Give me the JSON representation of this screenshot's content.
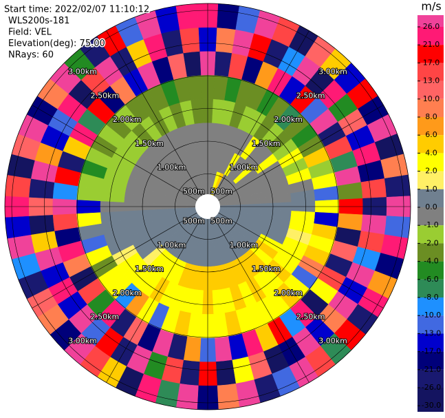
{
  "chart_data": {
    "type": "ppi",
    "header": [
      "Start time: 2022/02/07 11:10:12",
      "WLS200s-181",
      "Field: VEL",
      "Elevation(deg): 75.00",
      "NRays: 60"
    ],
    "range_labels": [
      "500m",
      "1.00km",
      "1.50km",
      "2.00km",
      "2.50km",
      "3.00km"
    ],
    "colorbar": {
      "label": "m/s",
      "ticks": [
        {
          "value": 26,
          "label": "26.0"
        },
        {
          "value": 21,
          "label": "21.0"
        },
        {
          "value": 17,
          "label": "17.0"
        },
        {
          "value": 13,
          "label": "13.0"
        },
        {
          "value": 10,
          "label": "10.0"
        },
        {
          "value": 8,
          "label": "8.0"
        },
        {
          "value": 6,
          "label": "6.0"
        },
        {
          "value": 4,
          "label": "4.0"
        },
        {
          "value": 2,
          "label": "2.0"
        },
        {
          "value": 1,
          "label": "1.0"
        },
        {
          "value": 0,
          "label": "0.0"
        },
        {
          "value": -1,
          "label": "-1.0"
        },
        {
          "value": -2,
          "label": "-2.0"
        },
        {
          "value": -4,
          "label": "-4.0"
        },
        {
          "value": -6,
          "label": "-6.0"
        },
        {
          "value": -8,
          "label": "-8.0"
        },
        {
          "value": -10,
          "label": "-10.0"
        },
        {
          "value": -13,
          "label": "-13.0"
        },
        {
          "value": -17,
          "label": "-17.0"
        },
        {
          "value": -21,
          "label": "-21.0"
        },
        {
          "value": -26,
          "label": "-26.0"
        },
        {
          "value": -30,
          "label": "-30.0"
        }
      ],
      "colors": [
        "#f0429a",
        "#ff1a75",
        "#ff0000",
        "#ff4545",
        "#ff6464",
        "#ff7f50",
        "#ff9a1a",
        "#ffcc00",
        "#ffff00",
        "#fff066",
        "#708090",
        "#808080",
        "#9acd32",
        "#6b8e23",
        "#228b22",
        "#2e8b57",
        "#1e90ff",
        "#4169e1",
        "#0000cd",
        "#00007a",
        "#191970",
        "#141460"
      ]
    },
    "values": [
      [
        -0.5,
        -0.5,
        -0.5,
        -3,
        -3,
        27,
        -15,
        22
      ],
      [
        -0.5,
        -0.5,
        -0.5,
        -1.5,
        -3,
        -25,
        9,
        -18
      ],
      [
        -0.5,
        -0.5,
        -0.5,
        -1.5,
        -5,
        14,
        27,
        -12
      ],
      [
        3,
        -0.5,
        -0.5,
        -3,
        -3,
        -19,
        18,
        28
      ],
      [
        5,
        -0.5,
        -0.5,
        -1.5,
        -3,
        7,
        -23,
        15
      ],
      [
        -0.5,
        3,
        -0.5,
        -1.5,
        -5,
        22,
        -9,
        -27
      ],
      [
        -0.5,
        -0.5,
        3,
        -3,
        -3,
        -14,
        27,
        11
      ],
      [
        -0.5,
        -0.5,
        -0.5,
        -1.5,
        -7,
        18,
        -27,
        5
      ],
      [
        -0.5,
        3,
        -0.5,
        -3,
        -3,
        -11,
        24,
        -16
      ],
      [
        -0.5,
        -0.5,
        3,
        -1.5,
        -5,
        29,
        -6,
        19
      ],
      [
        -0.5,
        -0.5,
        -0.5,
        3,
        -3,
        -24,
        12,
        -20
      ],
      [
        -0.5,
        -0.5,
        -0.5,
        -1.5,
        5,
        16,
        -15,
        27
      ],
      [
        -0.5,
        -0.5,
        -0.5,
        3,
        -1.5,
        -8,
        23,
        -28
      ],
      [
        -0.5,
        -0.5,
        -0.5,
        -0.5,
        3,
        26,
        -18,
        9
      ],
      [
        -0.5,
        -0.5,
        -0.5,
        0.5,
        -12,
        -3,
        14,
        -23
      ],
      [
        0.5,
        0.5,
        0.5,
        0.5,
        3,
        19,
        -25,
        28
      ],
      [
        0.5,
        0.5,
        0.5,
        3,
        -16,
        7,
        27,
        -11
      ],
      [
        0.5,
        0.5,
        0.5,
        3,
        5,
        -27,
        15,
        21
      ],
      [
        0.5,
        0.5,
        0.5,
        1.5,
        3,
        12,
        -9,
        -19
      ],
      [
        0.5,
        0.5,
        0.5,
        3,
        5,
        -22,
        28,
        7
      ],
      [
        0.5,
        0.5,
        3,
        3,
        9,
        15,
        -16,
        24
      ],
      [
        0.5,
        0.5,
        5,
        3,
        -12,
        3,
        27,
        -25
      ],
      [
        0.5,
        0.5,
        3,
        5,
        3,
        -27,
        9,
        18
      ],
      [
        0.5,
        0.5,
        5,
        3,
        5,
        22,
        -14,
        -7
      ],
      [
        0.5,
        0.5,
        5,
        3,
        3,
        -9,
        28,
        14
      ],
      [
        0.5,
        0.5,
        5,
        5,
        3,
        17,
        -21,
        27
      ],
      [
        0.5,
        0.5,
        5,
        3,
        3,
        5,
        -27,
        -13
      ],
      [
        0.5,
        0.5,
        5,
        5,
        3,
        25,
        11,
        -23
      ],
      [
        0.5,
        0.5,
        5,
        3,
        5,
        -15,
        3,
        27
      ],
      [
        0.5,
        0.5,
        5,
        3,
        3,
        28,
        -27,
        9
      ],
      [
        0.5,
        0.5,
        5,
        5,
        3,
        -11,
        18,
        -19
      ],
      [
        0.5,
        0.5,
        5,
        3,
        3,
        7,
        -25,
        26
      ],
      [
        0.5,
        0.5,
        5,
        3,
        5,
        -22,
        14,
        -8
      ],
      [
        0.5,
        0.5,
        5,
        3,
        3,
        27,
        -6,
        21
      ],
      [
        0.5,
        0.5,
        3,
        3,
        -12,
        -18,
        28,
        -27
      ],
      [
        0.5,
        0.5,
        3,
        5,
        3,
        12,
        -24,
        5
      ],
      [
        0.5,
        0.5,
        3,
        3,
        7,
        -26,
        19,
        14
      ],
      [
        0.5,
        0.5,
        3,
        3,
        -9,
        22,
        -13,
        28
      ],
      [
        0.5,
        0.5,
        1.5,
        3,
        3,
        -5,
        27,
        -21
      ],
      [
        0.5,
        0.5,
        0.5,
        3,
        3,
        15,
        -17,
        9
      ],
      [
        0.5,
        0.5,
        0.5,
        1.5,
        -3,
        -27,
        24,
        11
      ],
      [
        0.5,
        0.5,
        0.5,
        0.5,
        3,
        8,
        -15,
        -25
      ],
      [
        0.5,
        0.5,
        0.5,
        0.5,
        -12,
        23,
        28,
        -9
      ],
      [
        0.5,
        0.5,
        0.5,
        0.5,
        0.5,
        -19,
        5,
        27
      ],
      [
        0.5,
        0.5,
        0.5,
        0.5,
        3,
        14,
        -27,
        -14
      ],
      [
        -0.5,
        -0.5,
        -0.5,
        -0.5,
        -15,
        27,
        11,
        22
      ],
      [
        -0.5,
        -0.5,
        -0.5,
        -1.5,
        -1.5,
        -9,
        -22,
        15
      ],
      [
        -0.5,
        -0.5,
        -0.5,
        -1.5,
        -1.5,
        19,
        27,
        -28
      ],
      [
        -0.5,
        -0.5,
        -0.5,
        -1.5,
        -5,
        -24,
        7,
        12
      ],
      [
        -0.5,
        -0.5,
        -0.5,
        -1.5,
        -1.5,
        5,
        -16,
        27
      ],
      [
        -0.5,
        -0.5,
        -0.5,
        -1.5,
        -3,
        25,
        -12,
        -20
      ],
      [
        -0.5,
        -0.5,
        -0.5,
        -1.5,
        -1.5,
        -7,
        22,
        9
      ],
      [
        -0.5,
        -0.5,
        -0.5,
        -1.5,
        -3,
        17,
        -27,
        28
      ],
      [
        -0.5,
        -0.5,
        -0.5,
        -3,
        -1.5,
        -21,
        13,
        -5
      ],
      [
        -0.5,
        -0.5,
        -0.5,
        -1.5,
        -3,
        9,
        27,
        -24
      ],
      [
        -0.5,
        -0.5,
        -0.5,
        -3,
        -3,
        -14,
        -26,
        18
      ],
      [
        -0.5,
        -0.5,
        -0.5,
        -1.5,
        -3,
        28,
        5,
        -11
      ],
      [
        -0.5,
        -0.5,
        -0.5,
        -3,
        -5,
        -19,
        21,
        26
      ],
      [
        -0.5,
        -0.5,
        -0.5,
        -1.5,
        -3,
        11,
        -25,
        -16
      ],
      [
        -0.5,
        -0.5,
        -0.5,
        -3,
        -3,
        -27,
        16,
        23
      ]
    ]
  }
}
